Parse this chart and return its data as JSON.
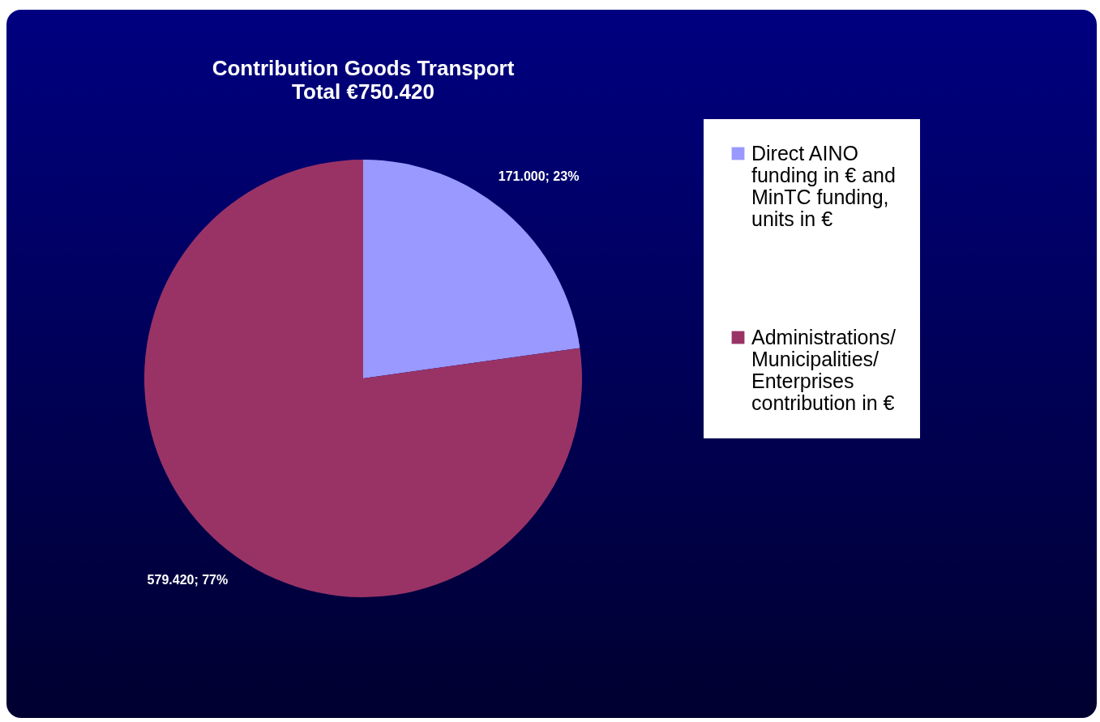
{
  "chart_data": {
    "type": "pie",
    "title": "Contribution Goods Transport",
    "subtitle": "Total €750.420",
    "categories": [
      "Direct AINO funding in € and MinTC funding, units in €",
      "Administrations/ Municipalities/ Enterprises contribution in €"
    ],
    "values": [
      171000,
      579420
    ],
    "value_labels": [
      "171.000; 23%",
      "579.420; 77%"
    ],
    "colors": [
      "#9999ff",
      "#993366"
    ],
    "legend": "right"
  }
}
